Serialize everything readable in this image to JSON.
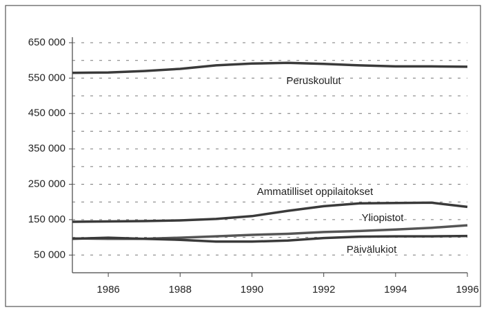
{
  "chart_data": {
    "type": "line",
    "x": [
      1985,
      1986,
      1987,
      1988,
      1989,
      1990,
      1991,
      1992,
      1993,
      1994,
      1995,
      1996
    ],
    "series": [
      {
        "name": "Peruskoulut",
        "color": "#3a3a3a",
        "values": [
          565000,
          566000,
          570000,
          576000,
          586000,
          591000,
          593000,
          590000,
          586000,
          583000,
          583000,
          582000
        ]
      },
      {
        "name": "Ammatilliset oppilaitokset",
        "color": "#3a3a3a",
        "values": [
          144000,
          145000,
          146000,
          148000,
          152000,
          160000,
          175000,
          188000,
          196000,
          197000,
          198000,
          186000
        ]
      },
      {
        "name": "Yliopistot",
        "color": "#555555",
        "values": [
          97000,
          96000,
          96000,
          99000,
          103000,
          107000,
          110000,
          115000,
          118000,
          122000,
          127000,
          134000
        ]
      },
      {
        "name": "Päivälukiot",
        "color": "#3a3a3a",
        "values": [
          96000,
          99000,
          96000,
          93000,
          88000,
          88000,
          91000,
          98000,
          102000,
          103000,
          103000,
          104000
        ]
      }
    ],
    "xlim": [
      1985,
      1996
    ],
    "xticks": [
      1986,
      1988,
      1990,
      1992,
      1994,
      1996
    ],
    "ylim": [
      0,
      650000
    ],
    "yticks": [
      {
        "value": 50000,
        "label": "50 000"
      },
      {
        "value": 150000,
        "label": "150 000"
      },
      {
        "value": 250000,
        "label": "250 000"
      },
      {
        "value": 350000,
        "label": "350 000"
      },
      {
        "value": 450000,
        "label": "450 000"
      },
      {
        "value": 550000,
        "label": "550 000"
      },
      {
        "value": 650000,
        "label": "650 000"
      }
    ],
    "ygrid": [
      50000,
      100000,
      150000,
      200000,
      250000,
      300000,
      350000,
      400000,
      450000,
      500000,
      550000,
      600000,
      650000
    ],
    "grid": true
  }
}
